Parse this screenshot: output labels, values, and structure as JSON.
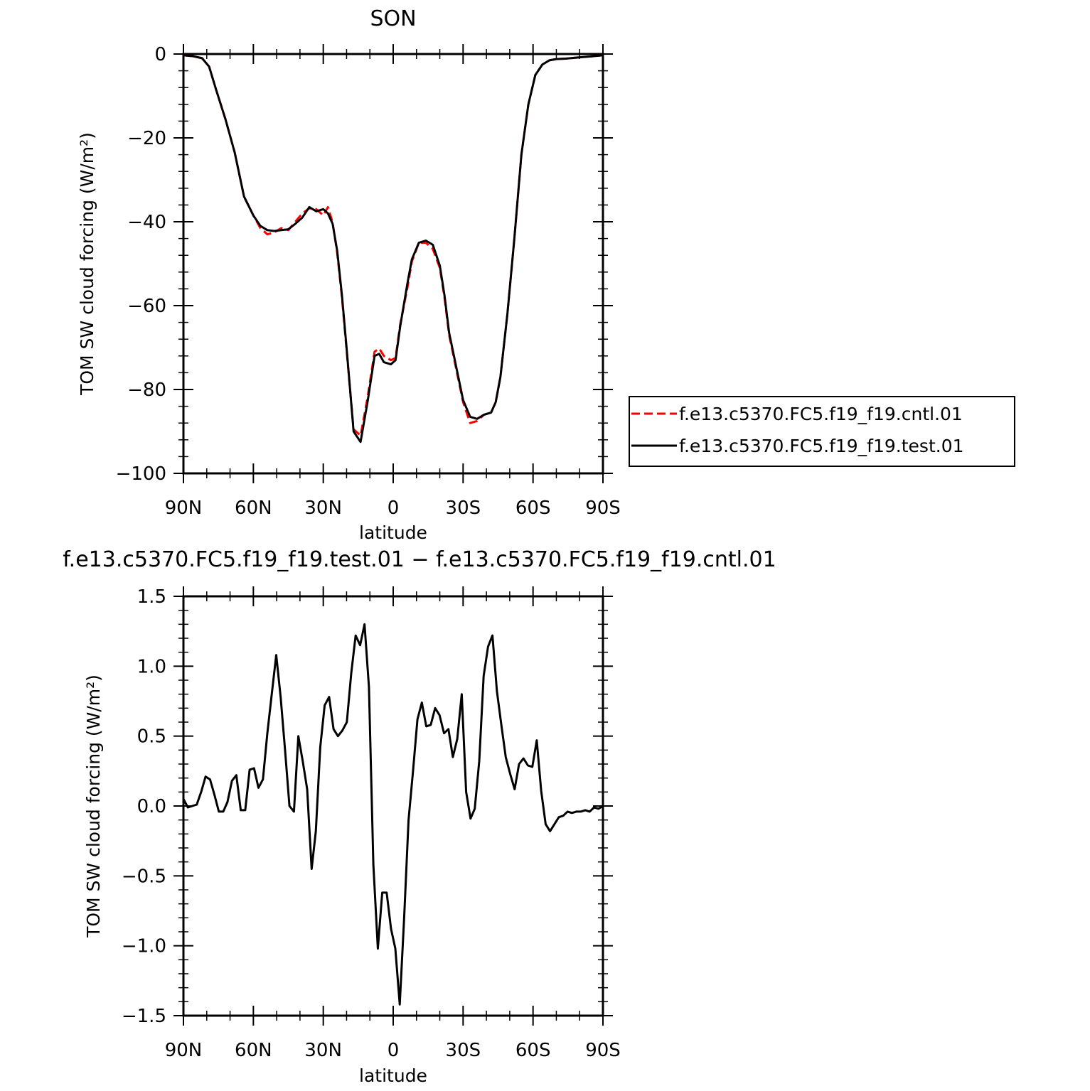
{
  "chart_data": [
    {
      "type": "line",
      "title": "SON",
      "xlabel": "latitude",
      "ylabel": "TOM SW cloud forcing (W/m²)",
      "ylim": [
        -100,
        0
      ],
      "yticks": [
        0,
        -20,
        -40,
        -60,
        -80,
        -100
      ],
      "ytick_labels": [
        "0",
        "−20",
        "−40",
        "−60",
        "−80",
        "−100"
      ],
      "xlim": [
        90,
        -90
      ],
      "xticks": [
        90,
        60,
        30,
        0,
        -30,
        -60,
        -90
      ],
      "xtick_labels": [
        "90N",
        "60N",
        "30N",
        "0",
        "30S",
        "60S",
        "90S"
      ],
      "grid": false,
      "legend_position": "right",
      "series": [
        {
          "name": "f.e13.c5370.FC5.f19_f19.cntl.01",
          "color": "#ff0000",
          "dash": "dashed",
          "x": [
            90,
            86,
            82,
            79,
            76,
            72,
            68,
            64,
            60,
            57,
            54,
            51,
            48,
            45,
            42,
            39,
            36,
            33,
            30,
            28,
            26,
            24,
            22,
            20,
            17,
            14,
            11,
            8,
            6,
            4,
            1,
            -1,
            -3,
            -6,
            -8,
            -11,
            -14,
            -17,
            -20,
            -22,
            -24,
            -27,
            -30,
            -33,
            -36,
            -39,
            -42,
            -44,
            -46,
            -49,
            -52,
            -55,
            -58,
            -61,
            -64,
            -67,
            -70,
            -74,
            -78,
            -82,
            -86,
            -90
          ],
          "y": [
            -0.3,
            -0.5,
            -1.0,
            -3.0,
            -8.5,
            -15.5,
            -23.5,
            -34.0,
            -38.5,
            -41.5,
            -43.0,
            -42.5,
            -41.5,
            -42.0,
            -40.0,
            -38.0,
            -36.8,
            -37.0,
            -38.5,
            -36.5,
            -40.2,
            -47.5,
            -58.0,
            -70.5,
            -89.5,
            -91.0,
            -82.0,
            -71.0,
            -70.2,
            -72.0,
            -73.0,
            -72.5,
            -64.5,
            -56.0,
            -49.5,
            -45.0,
            -45.0,
            -46.5,
            -51.0,
            -58.0,
            -67.0,
            -75.0,
            -83.0,
            -88.0,
            -87.5,
            -86.0,
            -85.5,
            -83.0,
            -77.0,
            -62.0,
            -44.0,
            -24.0,
            -12.0,
            -5.0,
            -2.5,
            -1.5,
            -1.2,
            -1.1,
            -0.9,
            -0.7,
            -0.5,
            -0.3
          ]
        },
        {
          "name": "f.e13.c5370.FC5.f19_f19.test.01",
          "color": "#000000",
          "dash": "solid",
          "x": [
            90,
            86,
            82,
            79,
            76,
            72,
            68,
            64,
            60,
            57,
            54,
            51,
            48,
            45,
            42,
            39,
            36,
            33,
            30,
            28,
            26,
            24,
            22,
            20,
            17,
            14,
            11,
            8,
            6,
            4,
            1,
            -1,
            -3,
            -6,
            -8,
            -11,
            -14,
            -17,
            -20,
            -22,
            -24,
            -27,
            -30,
            -33,
            -36,
            -39,
            -42,
            -44,
            -46,
            -49,
            -52,
            -55,
            -58,
            -61,
            -64,
            -67,
            -70,
            -74,
            -78,
            -82,
            -86,
            -90
          ],
          "y": [
            -0.3,
            -0.5,
            -1.0,
            -3.0,
            -8.5,
            -15.5,
            -23.5,
            -34.0,
            -38.5,
            -41.0,
            -42.0,
            -42.2,
            -42.0,
            -41.8,
            -40.5,
            -39.0,
            -36.5,
            -37.5,
            -37.0,
            -38.0,
            -40.5,
            -47.0,
            -57.5,
            -70.0,
            -90.0,
            -92.5,
            -83.0,
            -72.0,
            -71.5,
            -73.5,
            -74.0,
            -73.0,
            -65.0,
            -55.0,
            -49.0,
            -45.0,
            -44.5,
            -45.5,
            -50.5,
            -57.5,
            -66.5,
            -74.5,
            -82.5,
            -86.5,
            -87.0,
            -86.0,
            -85.5,
            -83.0,
            -77.0,
            -62.0,
            -44.0,
            -24.0,
            -12.0,
            -5.0,
            -2.5,
            -1.5,
            -1.2,
            -1.1,
            -0.9,
            -0.7,
            -0.5,
            -0.3
          ]
        }
      ]
    },
    {
      "type": "line",
      "title": "f.e13.c5370.FC5.f19_f19.test.01 − f.e13.c5370.FC5.f19_f19.cntl.01",
      "xlabel": "latitude",
      "ylabel": "TOM SW cloud forcing (W/m²)",
      "ylim": [
        -1.5,
        1.5
      ],
      "yticks": [
        1.5,
        1.0,
        0.5,
        0.0,
        -0.5,
        -1.0,
        -1.5
      ],
      "ytick_labels": [
        "1.5",
        "1.0",
        "0.5",
        "0.0",
        "−0.5",
        "−1.0",
        "−1.5"
      ],
      "xlim": [
        90,
        -90
      ],
      "xticks": [
        90,
        60,
        30,
        0,
        -30,
        -60,
        -90
      ],
      "xtick_labels": [
        "90N",
        "60N",
        "30N",
        "0",
        "30S",
        "60S",
        "90S"
      ],
      "grid": false,
      "series": [
        {
          "color": "#000000",
          "dash": "solid",
          "x": [
            90,
            88.1,
            86.2,
            84.3,
            82.4,
            80.5,
            78.6,
            76.7,
            74.8,
            72.9,
            71.1,
            69.2,
            67.3,
            65.4,
            63.5,
            61.6,
            59.7,
            57.8,
            55.9,
            54.0,
            52.1,
            50.2,
            48.3,
            46.4,
            44.5,
            42.6,
            40.7,
            38.8,
            36.9,
            35.0,
            33.2,
            31.3,
            29.4,
            27.5,
            25.6,
            23.7,
            21.8,
            19.9,
            18.0,
            16.1,
            14.2,
            12.3,
            10.4,
            8.5,
            6.6,
            4.7,
            2.8,
            0.9,
            -0.9,
            -2.8,
            -4.7,
            -6.6,
            -8.5,
            -10.4,
            -12.3,
            -14.2,
            -16.1,
            -18.0,
            -19.9,
            -21.8,
            -23.7,
            -25.6,
            -27.5,
            -29.4,
            -31.3,
            -33.2,
            -35.0,
            -36.9,
            -38.8,
            -40.7,
            -42.6,
            -44.5,
            -46.4,
            -48.3,
            -50.2,
            -52.1,
            -54.0,
            -55.9,
            -57.8,
            -59.7,
            -61.6,
            -63.5,
            -65.4,
            -67.3,
            -69.2,
            -71.1,
            -72.9,
            -74.8,
            -76.7,
            -78.6,
            -80.5,
            -82.4,
            -84.3,
            -86.2,
            -88.1,
            -90
          ],
          "y": [
            0.05,
            -0.01,
            0.0,
            0.01,
            0.1,
            0.21,
            0.19,
            0.08,
            -0.04,
            -0.04,
            0.03,
            0.18,
            0.22,
            -0.03,
            -0.03,
            0.26,
            0.27,
            0.13,
            0.19,
            0.52,
            0.8,
            1.08,
            0.78,
            0.4,
            0.0,
            -0.04,
            0.5,
            0.32,
            0.12,
            -0.45,
            -0.18,
            0.42,
            0.72,
            0.78,
            0.55,
            0.5,
            0.54,
            0.6,
            0.95,
            1.22,
            1.15,
            1.3,
            0.85,
            -0.42,
            -1.02,
            -0.62,
            -0.62,
            -0.88,
            -1.02,
            -1.42,
            -0.8,
            -0.1,
            0.25,
            0.62,
            0.74,
            0.57,
            0.58,
            0.7,
            0.65,
            0.52,
            0.55,
            0.35,
            0.48,
            0.8,
            0.1,
            -0.09,
            -0.02,
            0.32,
            0.93,
            1.14,
            1.22,
            0.82,
            0.58,
            0.35,
            0.23,
            0.12,
            0.3,
            0.34,
            0.29,
            0.28,
            0.47,
            0.11,
            -0.13,
            -0.18,
            -0.13,
            -0.08,
            -0.07,
            -0.04,
            -0.05,
            -0.04,
            -0.04,
            -0.03,
            -0.04,
            -0.01,
            -0.02,
            0.0
          ]
        }
      ]
    }
  ]
}
